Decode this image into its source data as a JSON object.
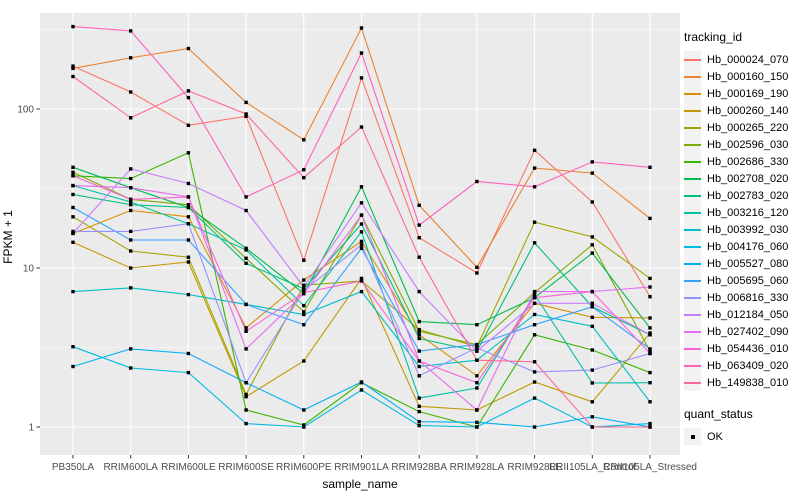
{
  "figure": {
    "background": "#FFFFFF",
    "panel_background": "#EBEBEB",
    "grid_color": "#FFFFFF",
    "tick_label_color": "#4D4D4D",
    "marker_color": "#000000"
  },
  "chart_data": {
    "type": "line",
    "xlabel": "sample_name",
    "ylabel": "FPKM + 1",
    "y_scale": "log10",
    "y_ticks": [
      1,
      10,
      100
    ],
    "y_tick_labels": [
      "1",
      "10",
      "100"
    ],
    "y_minor_ticks": [
      3.1623,
      31.623,
      316.23
    ],
    "ylim": [
      0.9,
      400
    ],
    "grid": true,
    "marker": "black-square",
    "categories": [
      "PB350LA",
      "RRIM600LA",
      "RRIM600LE",
      "RRIM600SE",
      "RRIM600PE",
      "RRIM901LA",
      "RRIM928BA",
      "RRIM928LA",
      "RRIM928LE",
      "RRII105LA_Control",
      "RRII105LA_Stressed"
    ],
    "legend": {
      "title": "tracking_id",
      "position": "right",
      "quant_title": "quant_status",
      "quant_items": [
        {
          "label": "OK",
          "marker": "black-square"
        }
      ]
    },
    "series": [
      {
        "name": "Hb_000024_070",
        "color": "#F8766D",
        "values": [
          186,
          128,
          79,
          90,
          11.2,
          157,
          15.5,
          9.3,
          55,
          26,
          6.6
        ]
      },
      {
        "name": "Hb_000160_150",
        "color": "#EA8331",
        "values": [
          180,
          210,
          240,
          110,
          64,
          323,
          24.8,
          10.1,
          42.5,
          39.5,
          20.5
        ]
      },
      {
        "name": "Hb_000169_190",
        "color": "#D89000",
        "values": [
          16.5,
          23,
          21,
          4.2,
          8.4,
          14.7,
          3.8,
          2.1,
          6.0,
          4.9,
          4.85
        ]
      },
      {
        "name": "Hb_000260_140",
        "color": "#C09B00",
        "values": [
          14.5,
          10,
          10.9,
          1.55,
          2.6,
          8.6,
          1.35,
          1.28,
          1.92,
          1.44,
          3.9
        ]
      },
      {
        "name": "Hb_000265_220",
        "color": "#A3A500",
        "values": [
          21,
          12.8,
          11.7,
          1.6,
          7.8,
          8.3,
          4.1,
          3.2,
          19.4,
          15.7,
          8.6
        ]
      },
      {
        "name": "Hb_002596_030",
        "color": "#7CAE00",
        "values": [
          40,
          27,
          25,
          11.5,
          5.3,
          21.5,
          4.0,
          3.3,
          7.0,
          14.0,
          3.0
        ]
      },
      {
        "name": "Hb_002686_330",
        "color": "#39B600",
        "values": [
          38,
          36.5,
          53,
          1.28,
          1.03,
          1.9,
          1.25,
          1.0,
          3.8,
          3.05,
          2.2
        ]
      },
      {
        "name": "Hb_002708_020",
        "color": "#00BB4E",
        "values": [
          43,
          32,
          24,
          13.3,
          6.9,
          32.4,
          4.6,
          4.4,
          6.5,
          12.4,
          4.2
        ]
      },
      {
        "name": "Hb_002783_020",
        "color": "#00BF7D",
        "values": [
          29,
          25,
          24,
          10.7,
          7.4,
          18.9,
          3.6,
          3.0,
          14.4,
          5.7,
          3.8
        ]
      },
      {
        "name": "Hb_003216_120",
        "color": "#00C1A3",
        "values": [
          33,
          26,
          19,
          13.0,
          5.8,
          16.9,
          1.52,
          1.76,
          6.8,
          1.89,
          1.9
        ]
      },
      {
        "name": "Hb_003992_030",
        "color": "#00BFC4",
        "values": [
          7.1,
          7.5,
          6.8,
          5.9,
          5.1,
          7.1,
          2.4,
          2.63,
          5.1,
          4.3,
          1.44
        ]
      },
      {
        "name": "Hb_004176_060",
        "color": "#00BAE0",
        "values": [
          3.2,
          2.35,
          2.2,
          1.05,
          1.0,
          1.71,
          1.02,
          1.0,
          1.52,
          1.0,
          1.05
        ]
      },
      {
        "name": "Hb_005527_080",
        "color": "#00B0F6",
        "values": [
          2.4,
          3.1,
          2.9,
          1.9,
          1.28,
          1.92,
          1.08,
          1.07,
          1.0,
          1.16,
          1.0
        ]
      },
      {
        "name": "Hb_005695_060",
        "color": "#35A2FF",
        "values": [
          24,
          15,
          15,
          5.9,
          4.4,
          13.3,
          3.0,
          3.3,
          4.4,
          5.7,
          3.1
        ]
      },
      {
        "name": "Hb_006816_330",
        "color": "#9590FF",
        "values": [
          17,
          17,
          19,
          1.9,
          7.2,
          14.0,
          2.1,
          3.15,
          2.22,
          2.28,
          2.9
        ]
      },
      {
        "name": "Hb_012184_050",
        "color": "#C77CFF",
        "values": [
          16.5,
          42,
          34,
          23,
          7.6,
          25.7,
          7.1,
          3.0,
          6.0,
          6.0,
          3.8
        ]
      },
      {
        "name": "Hb_027402_090",
        "color": "#E76BF3",
        "values": [
          33,
          32,
          28,
          3.1,
          6.9,
          21.5,
          2.6,
          1.28,
          7.1,
          7.1,
          7.6
        ]
      },
      {
        "name": "Hb_054436_010",
        "color": "#FA62DB",
        "values": [
          38,
          27,
          28,
          4.0,
          7.0,
          8.3,
          2.6,
          1.9,
          6.5,
          7.1,
          2.9
        ]
      },
      {
        "name": "Hb_063409_020",
        "color": "#FF62BC",
        "values": [
          330,
          310,
          118,
          28,
          41.5,
          225,
          18.6,
          35,
          32.4,
          46.5,
          43
        ]
      },
      {
        "name": "Hb_149838_010",
        "color": "#FF6A98",
        "values": [
          160,
          88,
          130,
          93,
          37,
          77,
          11.7,
          2.63,
          2.57,
          1.0,
          1.0
        ]
      }
    ]
  }
}
